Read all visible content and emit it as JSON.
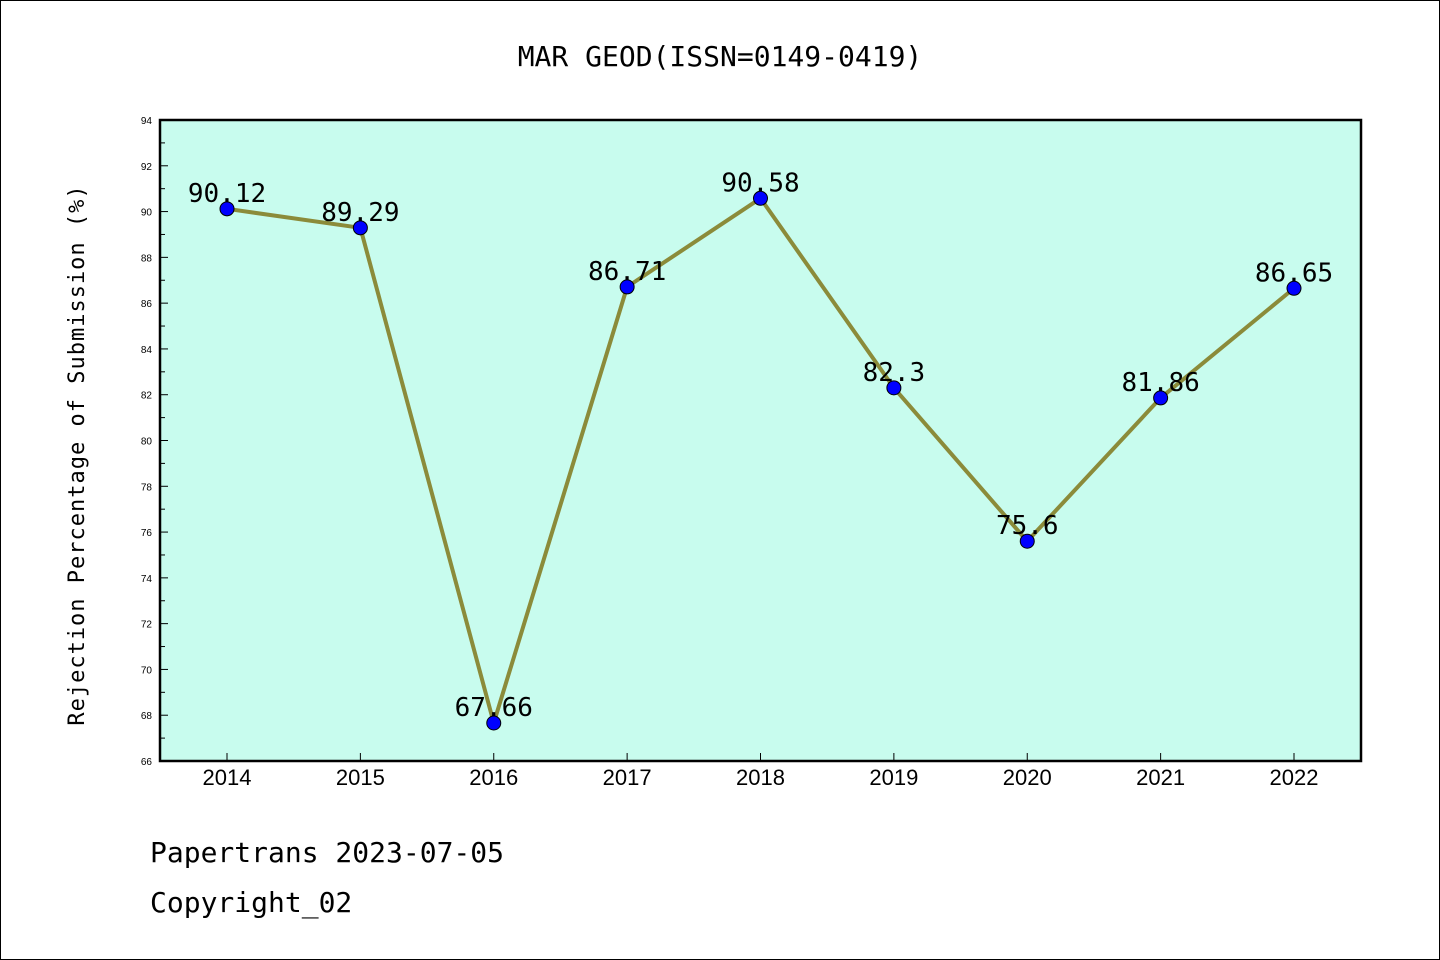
{
  "chart_data": {
    "type": "line",
    "title": "MAR GEOD(ISSN=0149-0419)",
    "xlabel": "",
    "ylabel": "Rejection Percentage of Submission (%)",
    "categories": [
      "2014",
      "2015",
      "2016",
      "2017",
      "2018",
      "2019",
      "2020",
      "2021",
      "2022"
    ],
    "series": [
      {
        "values": [
          90.12,
          89.29,
          67.66,
          86.71,
          90.58,
          82.3,
          75.6,
          81.86,
          86.65
        ],
        "labels": [
          "90.12",
          "89.29",
          "67.66",
          "86.71",
          "90.58",
          "82.3",
          "75.6",
          "81.86",
          "86.65"
        ],
        "line_color": "#8b8b3a",
        "marker_color": "#0000ff"
      }
    ],
    "ylim": [
      66,
      94
    ],
    "yticks": [
      "66",
      "68",
      "70",
      "72",
      "74",
      "76",
      "78",
      "80",
      "82",
      "84",
      "86",
      "88",
      "90",
      "92",
      "94"
    ],
    "plot_background": "#c8fcee",
    "grid": false
  },
  "footer": {
    "line1": "Papertrans 2023-07-05",
    "line2": "Copyright_02"
  }
}
